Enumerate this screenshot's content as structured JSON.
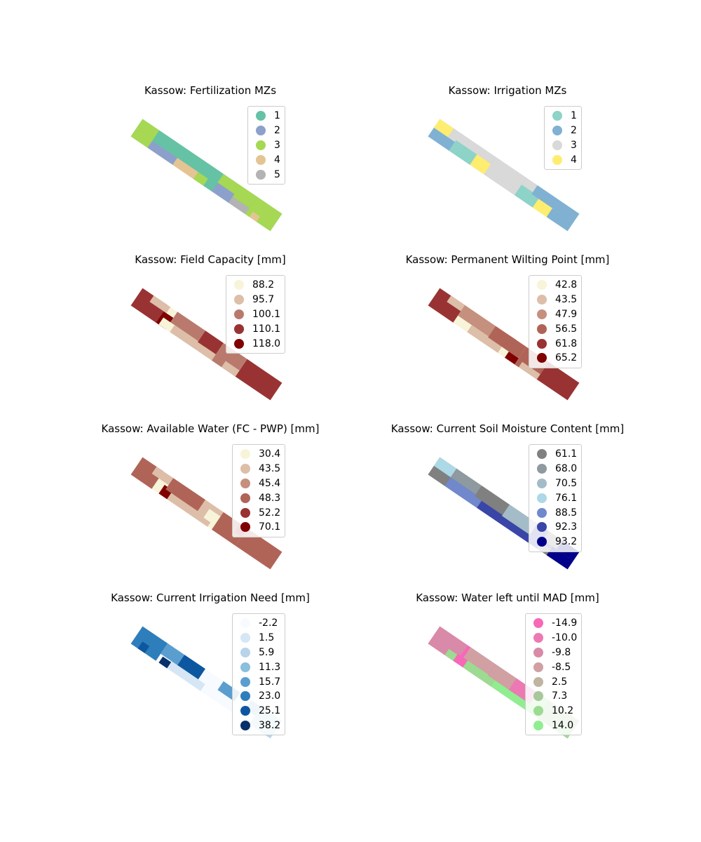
{
  "figure": {
    "panels": [
      {
        "id": "fertilization",
        "title": "Kassow: Fertilization MZs",
        "legend": [
          {
            "label": "1",
            "color": "#66c2a5"
          },
          {
            "label": "2",
            "color": "#8da0cb"
          },
          {
            "label": "3",
            "color": "#a6d854"
          },
          {
            "label": "4",
            "color": "#e5c494"
          },
          {
            "label": "5",
            "color": "#b3b3b3"
          }
        ]
      },
      {
        "id": "irrigation",
        "title": "Kassow: Irrigation MZs",
        "legend": [
          {
            "label": "1",
            "color": "#8dd3c7"
          },
          {
            "label": "2",
            "color": "#80b1d3"
          },
          {
            "label": "3",
            "color": "#d9d9d9"
          },
          {
            "label": "4",
            "color": "#ffed6f"
          }
        ]
      },
      {
        "id": "field-capacity",
        "title": "Kassow: Field Capacity [mm]",
        "legend": [
          {
            "label": "88.2",
            "color": "#f7f4d9"
          },
          {
            "label": "95.7",
            "color": "#ddbea8"
          },
          {
            "label": "100.1",
            "color": "#b97a6d"
          },
          {
            "label": "110.1",
            "color": "#993333"
          },
          {
            "label": "118.0",
            "color": "#800000"
          }
        ]
      },
      {
        "id": "wilting-point",
        "title": "Kassow: Permanent Wilting Point [mm]",
        "legend": [
          {
            "label": "42.8",
            "color": "#f7f4d9"
          },
          {
            "label": "43.5",
            "color": "#ddbea8"
          },
          {
            "label": "47.9",
            "color": "#c5907e"
          },
          {
            "label": "56.5",
            "color": "#b06457"
          },
          {
            "label": "61.8",
            "color": "#993333"
          },
          {
            "label": "65.2",
            "color": "#800000"
          }
        ]
      },
      {
        "id": "available-water",
        "title": "Kassow: Available Water (FC - PWP) [mm]",
        "legend": [
          {
            "label": "30.4",
            "color": "#f7f4d9"
          },
          {
            "label": "43.5",
            "color": "#ddbea8"
          },
          {
            "label": "45.4",
            "color": "#c5907e"
          },
          {
            "label": "48.3",
            "color": "#b06457"
          },
          {
            "label": "52.2",
            "color": "#993333"
          },
          {
            "label": "70.1",
            "color": "#800000"
          }
        ]
      },
      {
        "id": "soil-moisture",
        "title": "Kassow: Current Soil Moisture Content [mm]",
        "legend": [
          {
            "label": "61.1",
            "color": "#808080"
          },
          {
            "label": "68.0",
            "color": "#8e9aa0"
          },
          {
            "label": "70.5",
            "color": "#a3bcc7"
          },
          {
            "label": "76.1",
            "color": "#add8e6"
          },
          {
            "label": "88.5",
            "color": "#7188cc"
          },
          {
            "label": "92.3",
            "color": "#3a45a8"
          },
          {
            "label": "93.2",
            "color": "#00008b"
          }
        ]
      },
      {
        "id": "irrigation-need",
        "title": "Kassow: Current Irrigation Need [mm]",
        "legend": [
          {
            "label": "-2.2",
            "color": "#f7fbff"
          },
          {
            "label": "1.5",
            "color": "#d6e6f4"
          },
          {
            "label": "5.9",
            "color": "#b7d4ea"
          },
          {
            "label": "11.3",
            "color": "#8abfdd"
          },
          {
            "label": "15.7",
            "color": "#5a9ecf"
          },
          {
            "label": "23.0",
            "color": "#2e7ebc"
          },
          {
            "label": "25.1",
            "color": "#0d57a0"
          },
          {
            "label": "38.2",
            "color": "#08306b"
          }
        ]
      },
      {
        "id": "water-left",
        "title": "Kassow: Water left until MAD [mm]",
        "legend": [
          {
            "label": "-14.9",
            "color": "#f768b8"
          },
          {
            "label": "-10.0",
            "color": "#ec79b4"
          },
          {
            "label": "-9.8",
            "color": "#d98aa8"
          },
          {
            "label": "-8.5",
            "color": "#d0a0a3"
          },
          {
            "label": "2.5",
            "color": "#bfb5a0"
          },
          {
            "label": "7.3",
            "color": "#a8c79a"
          },
          {
            "label": "10.2",
            "color": "#9cdb91"
          },
          {
            "label": "14.0",
            "color": "#90ee90"
          }
        ]
      }
    ]
  }
}
